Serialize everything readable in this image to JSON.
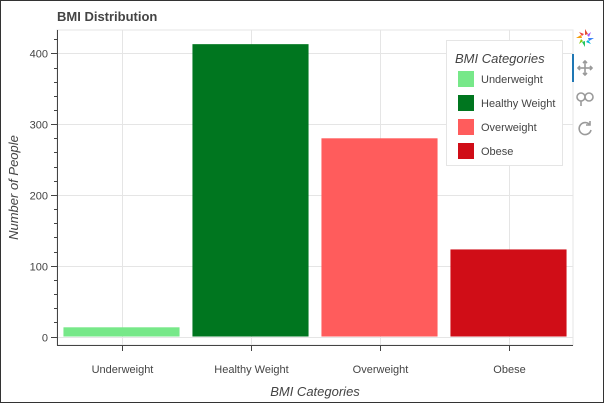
{
  "title": "BMI Distribution",
  "chart_data": {
    "type": "bar",
    "title": "BMI Distribution",
    "xlabel": "BMI Categories",
    "ylabel": "Number of People",
    "categories": [
      "Underweight",
      "Healthy Weight",
      "Overweight",
      "Obese"
    ],
    "values": [
      13,
      413,
      280,
      123
    ],
    "colors": [
      "#77e889",
      "#00761f",
      "#ff5c5c",
      "#d00d17"
    ],
    "ylim": [
      -12,
      433
    ],
    "yticks": [
      0,
      100,
      200,
      300,
      400
    ],
    "grid": true,
    "legend": {
      "title": "BMI Categories",
      "placement": "top-right",
      "entries": [
        "Underweight",
        "Healthy Weight",
        "Overweight",
        "Obese"
      ]
    }
  },
  "toolbar": {
    "tools": [
      "bokeh-logo-icon",
      "pan-icon",
      "box-zoom-icon",
      "reset-icon"
    ]
  }
}
